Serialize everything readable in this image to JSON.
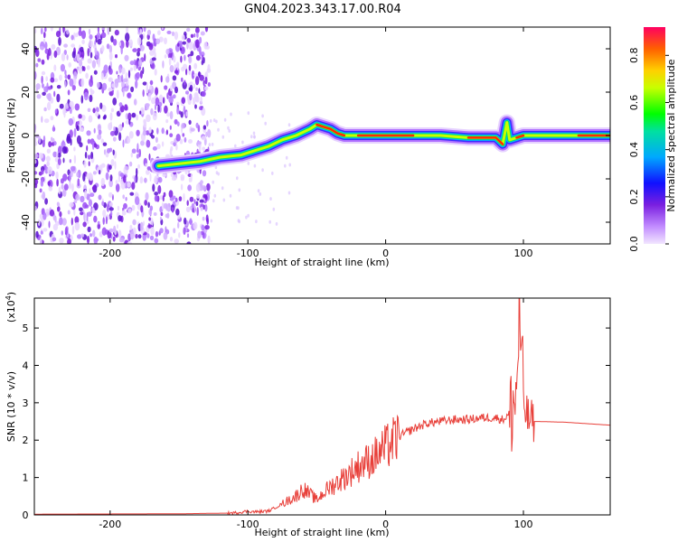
{
  "title": "GN04.2023.343.17.00.R04",
  "colorbar": {
    "label": "Normalized spectral amplitude",
    "ticks": [
      "0.0",
      "0.2",
      "0.4",
      "0.6",
      "0.8"
    ]
  },
  "chart_data": [
    {
      "type": "heatmap",
      "xlabel": "Height of straight line (km)",
      "ylabel": "Frequency (Hz)",
      "xlim": [
        -255,
        163
      ],
      "ylim": [
        -50,
        50
      ],
      "xticks": [
        "-200",
        "-100",
        "0",
        "100"
      ],
      "yticks": [
        "-40",
        "-20",
        "0",
        "20",
        "40"
      ],
      "colormap": [
        "#e8c8ff",
        "#8a2be2",
        "#0000ff",
        "#00bfff",
        "#00ff00",
        "#ffff00",
        "#ff8000",
        "#ff0000"
      ],
      "signal_track": {
        "x": [
          -165,
          -150,
          -135,
          -120,
          -105,
          -95,
          -85,
          -75,
          -65,
          -55,
          -50,
          -45,
          -40,
          -35,
          -30,
          -20,
          -10,
          0,
          20,
          40,
          60,
          80,
          85,
          88,
          90,
          95,
          100,
          120,
          140,
          163
        ],
        "y": [
          -14,
          -13,
          -12,
          -10,
          -9,
          -7,
          -5,
          -2,
          0,
          3,
          5,
          4,
          3,
          1,
          0,
          0,
          0,
          0,
          0,
          0,
          -1,
          -1,
          -4,
          6,
          -2,
          -1,
          0,
          0,
          0,
          0
        ]
      },
      "noise_region": [
        -255,
        -128
      ]
    },
    {
      "type": "line",
      "xlabel": "Height of straight line (km)",
      "ylabel": "SNR (10 * v/v)",
      "yscale_note": "(x10",
      "yscale_exp": "4",
      "yscale_close": ")",
      "xlim": [
        -255,
        163
      ],
      "ylim": [
        0,
        5.8
      ],
      "xticks": [
        "-200",
        "-100",
        "0",
        "100"
      ],
      "yticks": [
        "0",
        "1",
        "2",
        "3",
        "4",
        "5"
      ],
      "color": "#e8403a",
      "x": [
        -255,
        -150,
        -110,
        -100,
        -95,
        -85,
        -75,
        -65,
        -60,
        -55,
        -50,
        -45,
        -40,
        -30,
        -20,
        -10,
        0,
        10,
        20,
        30,
        40,
        50,
        60,
        70,
        80,
        85,
        90,
        95,
        97,
        100,
        103,
        106,
        110,
        130,
        163
      ],
      "y": [
        0.02,
        0.03,
        0.05,
        0.1,
        0.08,
        0.1,
        0.3,
        0.5,
        0.7,
        0.55,
        0.4,
        0.6,
        0.75,
        1.0,
        1.3,
        1.5,
        1.8,
        2.1,
        2.3,
        2.45,
        2.5,
        2.55,
        2.55,
        2.6,
        2.6,
        2.55,
        2.7,
        3.2,
        5.5,
        3.0,
        2.6,
        2.5,
        2.5,
        2.48,
        2.4
      ]
    }
  ]
}
